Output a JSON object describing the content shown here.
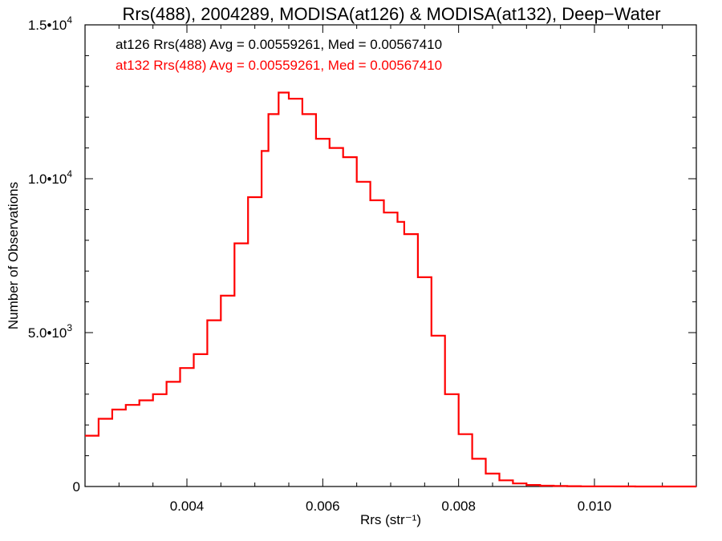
{
  "chart_data": {
    "type": "line",
    "title": "Rrs(488), 2004289, MODISA(at126) & MODISA(at132), Deep−Water",
    "xlabel": "Rrs (str⁻¹)",
    "ylabel": "Number of Observations",
    "xlim": [
      0.0025,
      0.0115
    ],
    "ylim": [
      0,
      15000
    ],
    "grid": false,
    "x_ticks": [
      {
        "value": 0.004,
        "label": "0.004"
      },
      {
        "value": 0.006,
        "label": "0.006"
      },
      {
        "value": 0.008,
        "label": "0.008"
      },
      {
        "value": 0.01,
        "label": "0.010"
      }
    ],
    "y_ticks": [
      {
        "value": 0,
        "mant": "0",
        "exp": ""
      },
      {
        "value": 5000,
        "mant": "5.0•10",
        "exp": "3"
      },
      {
        "value": 10000,
        "mant": "1.0•10",
        "exp": "4"
      },
      {
        "value": 15000,
        "mant": "1.5•10",
        "exp": "4"
      }
    ],
    "annotations": [
      {
        "text": "at126 Rrs(488) Avg = 0.00559261, Med = 0.00567410",
        "color": "#000000"
      },
      {
        "text": "at132 Rrs(488) Avg = 0.00559261, Med = 0.00567410",
        "color": "#ff0000"
      }
    ],
    "series": [
      {
        "color": "#ff0000",
        "style": "step",
        "x": [
          0.0025,
          0.0027,
          0.0029,
          0.0031,
          0.0033,
          0.0035,
          0.0037,
          0.0039,
          0.0041,
          0.0043,
          0.0045,
          0.0047,
          0.0049,
          0.0051,
          0.0052,
          0.00535,
          0.0055,
          0.0057,
          0.0059,
          0.0061,
          0.0063,
          0.0065,
          0.0067,
          0.0069,
          0.0071,
          0.0072,
          0.0074,
          0.0076,
          0.0078,
          0.008,
          0.0082,
          0.0084,
          0.0086,
          0.0088,
          0.009,
          0.0092,
          0.0094,
          0.0096,
          0.0098,
          0.01,
          0.0103,
          0.0106,
          0.011,
          0.0115
        ],
        "values": [
          1650,
          2200,
          2500,
          2650,
          2800,
          3000,
          3400,
          3850,
          4300,
          5400,
          6200,
          7900,
          9400,
          10900,
          12100,
          12800,
          12600,
          12100,
          11300,
          11000,
          10700,
          9900,
          9300,
          8900,
          8600,
          8200,
          6800,
          4900,
          3000,
          1700,
          900,
          420,
          200,
          100,
          50,
          25,
          15,
          10,
          6,
          4,
          2,
          1,
          0,
          0
        ]
      }
    ]
  }
}
